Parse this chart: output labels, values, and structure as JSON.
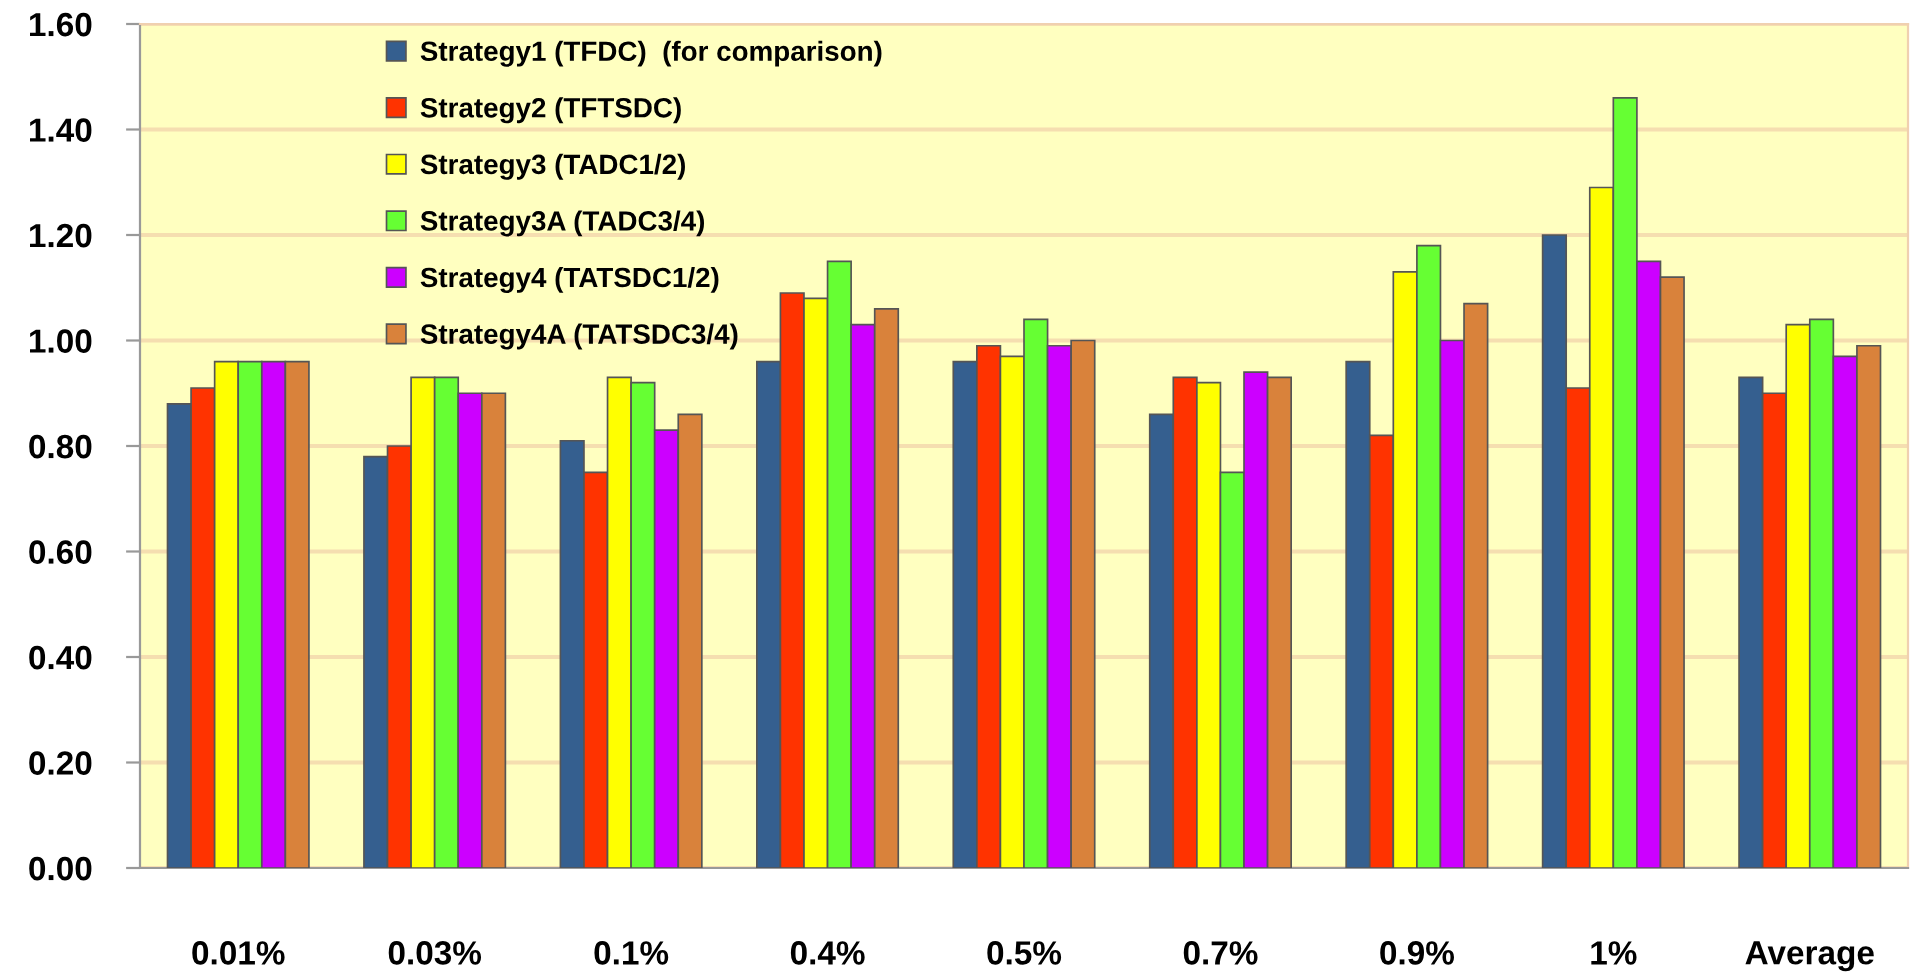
{
  "chart_data": {
    "type": "bar",
    "categories": [
      "0.01%",
      "0.03%",
      "0.1%",
      "0.4%",
      "0.5%",
      "0.7%",
      "0.9%",
      "1%",
      "Average"
    ],
    "series": [
      {
        "name": "Strategy1 (TFDC)  (for comparison)",
        "color": "#355f8f",
        "values": [
          0.88,
          0.78,
          0.81,
          0.96,
          0.96,
          0.86,
          0.96,
          1.2,
          0.93
        ]
      },
      {
        "name": "Strategy2 (TFTSDC)",
        "color": "#ff3300",
        "values": [
          0.91,
          0.8,
          0.75,
          1.09,
          0.99,
          0.93,
          0.82,
          0.91,
          0.9
        ]
      },
      {
        "name": "Strategy3 (TADC1/2)",
        "color": "#ffff00",
        "values": [
          0.96,
          0.93,
          0.93,
          1.08,
          0.97,
          0.92,
          1.13,
          1.29,
          1.03
        ]
      },
      {
        "name": "Strategy3A (TADC3/4)",
        "color": "#66ff33",
        "values": [
          0.96,
          0.93,
          0.92,
          1.15,
          1.04,
          0.75,
          1.18,
          1.46,
          1.04
        ]
      },
      {
        "name": "Strategy4 (TATSDC1/2)",
        "color": "#cc00ff",
        "values": [
          0.96,
          0.9,
          0.83,
          1.03,
          0.99,
          0.94,
          1.0,
          1.15,
          0.97
        ]
      },
      {
        "name": "Strategy4A (TATSDC3/4)",
        "color": "#d9823b",
        "values": [
          0.96,
          0.9,
          0.86,
          1.06,
          1.0,
          0.93,
          1.07,
          1.12,
          0.99
        ]
      }
    ],
    "ylim": [
      0,
      1.6
    ],
    "yticks": [
      {
        "value": 0,
        "label": "0.00"
      },
      {
        "value": 0.2,
        "label": "0.20"
      },
      {
        "value": 0.4,
        "label": "0.40"
      },
      {
        "value": 0.6,
        "label": "0.60"
      },
      {
        "value": 0.8,
        "label": "0.80"
      },
      {
        "value": 1.0,
        "label": "1.00"
      },
      {
        "value": 1.2,
        "label": "1.20"
      },
      {
        "value": 1.4,
        "label": "1.40"
      },
      {
        "value": 1.6,
        "label": "1.60"
      }
    ],
    "grid": "y",
    "legend": "top left"
  }
}
